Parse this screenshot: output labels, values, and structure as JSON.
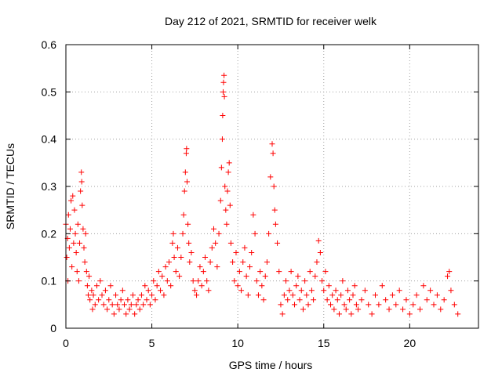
{
  "chart_data": {
    "type": "scatter",
    "title": "Day 212 of 2021, SRMTID for receiver welk",
    "xlabel": "GPS time / hours",
    "ylabel": "SRMTID / TECUs",
    "xlim": [
      0,
      24
    ],
    "ylim": [
      0,
      0.6
    ],
    "xticks": [
      0,
      5,
      10,
      15,
      20
    ],
    "xtick_labels": [
      "0",
      "5",
      "10",
      "15",
      "20"
    ],
    "yticks": [
      0,
      0.1,
      0.2,
      0.3,
      0.4,
      0.5,
      0.6
    ],
    "ytick_labels": [
      "0",
      "0.1",
      "0.2",
      "0.3",
      "0.4",
      "0.5",
      "0.6"
    ],
    "grid": true,
    "marker": "+",
    "series": [
      {
        "name": "SRMTID",
        "color": "#ff0000",
        "points": [
          [
            0.0,
            0.22
          ],
          [
            0.05,
            0.15
          ],
          [
            0.1,
            0.19
          ],
          [
            0.12,
            0.1
          ],
          [
            0.15,
            0.24
          ],
          [
            0.2,
            0.17
          ],
          [
            0.25,
            0.21
          ],
          [
            0.3,
            0.27
          ],
          [
            0.35,
            0.13
          ],
          [
            0.4,
            0.28
          ],
          [
            0.45,
            0.18
          ],
          [
            0.5,
            0.25
          ],
          [
            0.55,
            0.2
          ],
          [
            0.6,
            0.16
          ],
          [
            0.65,
            0.12
          ],
          [
            0.7,
            0.22
          ],
          [
            0.75,
            0.1
          ],
          [
            0.8,
            0.18
          ],
          [
            0.85,
            0.29
          ],
          [
            0.9,
            0.33
          ],
          [
            0.92,
            0.31
          ],
          [
            0.95,
            0.26
          ],
          [
            1.0,
            0.21
          ],
          [
            1.05,
            0.17
          ],
          [
            1.1,
            0.14
          ],
          [
            1.15,
            0.2
          ],
          [
            1.2,
            0.12
          ],
          [
            1.25,
            0.09
          ],
          [
            1.3,
            0.07
          ],
          [
            1.35,
            0.11
          ],
          [
            1.4,
            0.06
          ],
          [
            1.5,
            0.08
          ],
          [
            1.55,
            0.04
          ],
          [
            1.6,
            0.07
          ],
          [
            1.7,
            0.05
          ],
          [
            1.8,
            0.09
          ],
          [
            1.9,
            0.06
          ],
          [
            2.0,
            0.1
          ],
          [
            2.1,
            0.07
          ],
          [
            2.2,
            0.05
          ],
          [
            2.3,
            0.08
          ],
          [
            2.4,
            0.04
          ],
          [
            2.5,
            0.06
          ],
          [
            2.6,
            0.09
          ],
          [
            2.7,
            0.05
          ],
          [
            2.8,
            0.03
          ],
          [
            2.9,
            0.07
          ],
          [
            3.0,
            0.05
          ],
          [
            3.1,
            0.04
          ],
          [
            3.2,
            0.06
          ],
          [
            3.3,
            0.08
          ],
          [
            3.4,
            0.05
          ],
          [
            3.5,
            0.03
          ],
          [
            3.6,
            0.06
          ],
          [
            3.7,
            0.04
          ],
          [
            3.8,
            0.05
          ],
          [
            3.9,
            0.07
          ],
          [
            4.0,
            0.03
          ],
          [
            4.1,
            0.05
          ],
          [
            4.2,
            0.06
          ],
          [
            4.3,
            0.04
          ],
          [
            4.4,
            0.07
          ],
          [
            4.5,
            0.05
          ],
          [
            4.6,
            0.09
          ],
          [
            4.7,
            0.06
          ],
          [
            4.8,
            0.08
          ],
          [
            4.9,
            0.05
          ],
          [
            5.0,
            0.07
          ],
          [
            5.1,
            0.1
          ],
          [
            5.2,
            0.06
          ],
          [
            5.3,
            0.09
          ],
          [
            5.4,
            0.12
          ],
          [
            5.5,
            0.08
          ],
          [
            5.6,
            0.11
          ],
          [
            5.7,
            0.07
          ],
          [
            5.8,
            0.13
          ],
          [
            5.9,
            0.1
          ],
          [
            6.0,
            0.14
          ],
          [
            6.1,
            0.09
          ],
          [
            6.2,
            0.18
          ],
          [
            6.25,
            0.2
          ],
          [
            6.3,
            0.15
          ],
          [
            6.4,
            0.12
          ],
          [
            6.5,
            0.17
          ],
          [
            6.6,
            0.11
          ],
          [
            6.7,
            0.15
          ],
          [
            6.8,
            0.2
          ],
          [
            6.85,
            0.24
          ],
          [
            6.9,
            0.29
          ],
          [
            6.95,
            0.33
          ],
          [
            7.0,
            0.37
          ],
          [
            7.02,
            0.38
          ],
          [
            7.05,
            0.31
          ],
          [
            7.1,
            0.22
          ],
          [
            7.15,
            0.18
          ],
          [
            7.2,
            0.14
          ],
          [
            7.3,
            0.16
          ],
          [
            7.4,
            0.1
          ],
          [
            7.5,
            0.08
          ],
          [
            7.6,
            0.07
          ],
          [
            7.7,
            0.1
          ],
          [
            7.8,
            0.13
          ],
          [
            7.9,
            0.09
          ],
          [
            8.0,
            0.12
          ],
          [
            8.1,
            0.15
          ],
          [
            8.2,
            0.1
          ],
          [
            8.3,
            0.08
          ],
          [
            8.4,
            0.14
          ],
          [
            8.5,
            0.17
          ],
          [
            8.6,
            0.21
          ],
          [
            8.7,
            0.18
          ],
          [
            8.8,
            0.13
          ],
          [
            8.9,
            0.2
          ],
          [
            9.0,
            0.27
          ],
          [
            9.05,
            0.34
          ],
          [
            9.1,
            0.4
          ],
          [
            9.12,
            0.45
          ],
          [
            9.15,
            0.5
          ],
          [
            9.17,
            0.52
          ],
          [
            9.2,
            0.535
          ],
          [
            9.22,
            0.49
          ],
          [
            9.25,
            0.3
          ],
          [
            9.3,
            0.25
          ],
          [
            9.35,
            0.22
          ],
          [
            9.4,
            0.29
          ],
          [
            9.45,
            0.33
          ],
          [
            9.5,
            0.35
          ],
          [
            9.55,
            0.26
          ],
          [
            9.6,
            0.18
          ],
          [
            9.7,
            0.14
          ],
          [
            9.8,
            0.1
          ],
          [
            9.9,
            0.16
          ],
          [
            10.0,
            0.09
          ],
          [
            10.1,
            0.12
          ],
          [
            10.2,
            0.08
          ],
          [
            10.3,
            0.14
          ],
          [
            10.4,
            0.17
          ],
          [
            10.5,
            0.11
          ],
          [
            10.6,
            0.07
          ],
          [
            10.7,
            0.13
          ],
          [
            10.8,
            0.16
          ],
          [
            10.9,
            0.24
          ],
          [
            11.0,
            0.2
          ],
          [
            11.1,
            0.1
          ],
          [
            11.2,
            0.07
          ],
          [
            11.3,
            0.12
          ],
          [
            11.4,
            0.09
          ],
          [
            11.5,
            0.06
          ],
          [
            11.6,
            0.11
          ],
          [
            11.7,
            0.14
          ],
          [
            11.8,
            0.2
          ],
          [
            11.9,
            0.32
          ],
          [
            12.0,
            0.39
          ],
          [
            12.05,
            0.37
          ],
          [
            12.1,
            0.3
          ],
          [
            12.15,
            0.25
          ],
          [
            12.2,
            0.22
          ],
          [
            12.3,
            0.18
          ],
          [
            12.4,
            0.12
          ],
          [
            12.5,
            0.05
          ],
          [
            12.6,
            0.03
          ],
          [
            12.7,
            0.07
          ],
          [
            12.8,
            0.1
          ],
          [
            12.9,
            0.06
          ],
          [
            13.0,
            0.08
          ],
          [
            13.1,
            0.12
          ],
          [
            13.2,
            0.07
          ],
          [
            13.3,
            0.05
          ],
          [
            13.4,
            0.09
          ],
          [
            13.5,
            0.11
          ],
          [
            13.6,
            0.06
          ],
          [
            13.7,
            0.08
          ],
          [
            13.8,
            0.04
          ],
          [
            13.9,
            0.1
          ],
          [
            14.0,
            0.07
          ],
          [
            14.1,
            0.05
          ],
          [
            14.2,
            0.12
          ],
          [
            14.3,
            0.08
          ],
          [
            14.4,
            0.06
          ],
          [
            14.5,
            0.11
          ],
          [
            14.6,
            0.14
          ],
          [
            14.7,
            0.185
          ],
          [
            14.8,
            0.16
          ],
          [
            14.9,
            0.1
          ],
          [
            15.0,
            0.08
          ],
          [
            15.1,
            0.12
          ],
          [
            15.2,
            0.06
          ],
          [
            15.3,
            0.09
          ],
          [
            15.4,
            0.05
          ],
          [
            15.5,
            0.07
          ],
          [
            15.6,
            0.04
          ],
          [
            15.7,
            0.08
          ],
          [
            15.8,
            0.06
          ],
          [
            15.9,
            0.03
          ],
          [
            16.0,
            0.07
          ],
          [
            16.1,
            0.1
          ],
          [
            16.2,
            0.05
          ],
          [
            16.3,
            0.04
          ],
          [
            16.4,
            0.08
          ],
          [
            16.5,
            0.06
          ],
          [
            16.6,
            0.03
          ],
          [
            16.7,
            0.07
          ],
          [
            16.8,
            0.09
          ],
          [
            16.9,
            0.05
          ],
          [
            17.0,
            0.04
          ],
          [
            17.2,
            0.06
          ],
          [
            17.4,
            0.08
          ],
          [
            17.6,
            0.05
          ],
          [
            17.8,
            0.03
          ],
          [
            18.0,
            0.07
          ],
          [
            18.2,
            0.05
          ],
          [
            18.4,
            0.09
          ],
          [
            18.6,
            0.06
          ],
          [
            18.8,
            0.04
          ],
          [
            19.0,
            0.07
          ],
          [
            19.2,
            0.05
          ],
          [
            19.4,
            0.08
          ],
          [
            19.6,
            0.04
          ],
          [
            19.8,
            0.06
          ],
          [
            20.0,
            0.03
          ],
          [
            20.2,
            0.05
          ],
          [
            20.4,
            0.07
          ],
          [
            20.6,
            0.04
          ],
          [
            20.8,
            0.09
          ],
          [
            21.0,
            0.06
          ],
          [
            21.2,
            0.08
          ],
          [
            21.4,
            0.05
          ],
          [
            21.6,
            0.07
          ],
          [
            21.8,
            0.04
          ],
          [
            22.0,
            0.06
          ],
          [
            22.2,
            0.11
          ],
          [
            22.3,
            0.12
          ],
          [
            22.4,
            0.08
          ],
          [
            22.6,
            0.05
          ],
          [
            22.8,
            0.03
          ]
        ]
      }
    ]
  }
}
